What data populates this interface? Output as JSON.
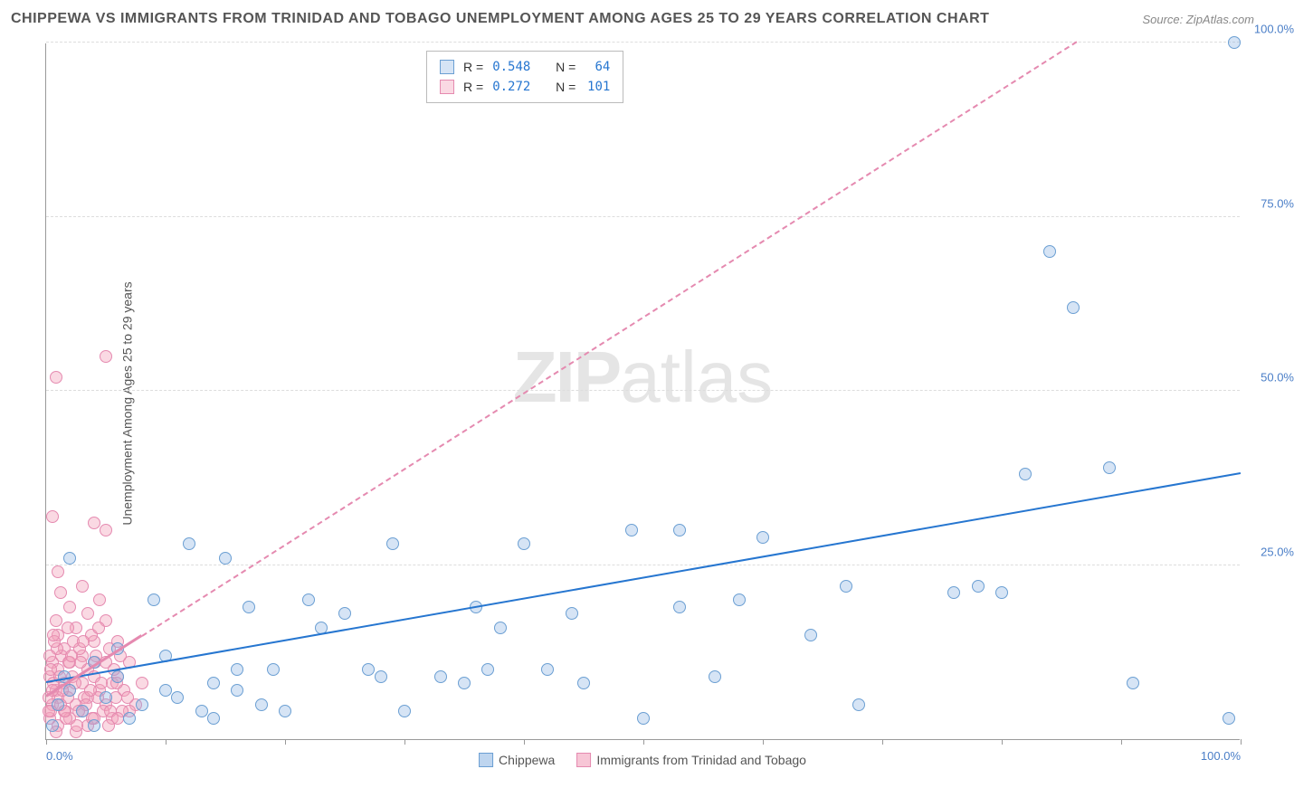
{
  "title": "CHIPPEWA VS IMMIGRANTS FROM TRINIDAD AND TOBAGO UNEMPLOYMENT AMONG AGES 25 TO 29 YEARS CORRELATION CHART",
  "source": "Source: ZipAtlas.com",
  "ylabel": "Unemployment Among Ages 25 to 29 years",
  "watermark_bold": "ZIP",
  "watermark_rest": "atlas",
  "chart": {
    "type": "scatter",
    "xlim": [
      0,
      100
    ],
    "ylim": [
      0,
      100
    ],
    "y_ticks": [
      25,
      50,
      75,
      100
    ],
    "y_tick_labels": [
      "25.0%",
      "50.0%",
      "75.0%",
      "100.0%"
    ],
    "x_minor_tick_step": 10,
    "x_tick_labels": {
      "0": "0.0%",
      "100": "100.0%"
    },
    "grid_color": "#dddddd",
    "axis_color": "#999999",
    "background_color": "#ffffff",
    "y_tick_label_color": "#4a7ec7",
    "x_tick_label_color": "#4a7ec7"
  },
  "series": [
    {
      "name": "Chippewa",
      "marker_fill": "rgba(137,178,225,0.35)",
      "marker_stroke": "#6b9fd3",
      "marker_size": 14,
      "line_color": "#2676d0",
      "line_dash": false,
      "regression": {
        "y_at_x0": 8,
        "y_at_x100": 38
      },
      "R": "0.548",
      "N": "64",
      "points": [
        [
          99.5,
          100
        ],
        [
          84,
          70
        ],
        [
          86,
          62
        ],
        [
          99,
          3
        ],
        [
          91,
          8
        ],
        [
          89,
          39
        ],
        [
          80,
          21
        ],
        [
          82,
          38
        ],
        [
          78,
          22
        ],
        [
          76,
          21
        ],
        [
          68,
          5
        ],
        [
          67,
          22
        ],
        [
          64,
          15
        ],
        [
          60,
          29
        ],
        [
          58,
          20
        ],
        [
          56,
          9
        ],
        [
          53,
          30
        ],
        [
          53,
          19
        ],
        [
          50,
          3
        ],
        [
          49,
          30
        ],
        [
          45,
          8
        ],
        [
          44,
          18
        ],
        [
          42,
          10
        ],
        [
          40,
          28
        ],
        [
          38,
          16
        ],
        [
          37,
          10
        ],
        [
          36,
          19
        ],
        [
          35,
          8
        ],
        [
          33,
          9
        ],
        [
          30,
          4
        ],
        [
          29,
          28
        ],
        [
          28,
          9
        ],
        [
          27,
          10
        ],
        [
          25,
          18
        ],
        [
          23,
          16
        ],
        [
          22,
          20
        ],
        [
          20,
          4
        ],
        [
          19,
          10
        ],
        [
          18,
          5
        ],
        [
          17,
          19
        ],
        [
          16,
          10
        ],
        [
          15,
          26
        ],
        [
          14,
          8
        ],
        [
          13,
          4
        ],
        [
          12,
          28
        ],
        [
          11,
          6
        ],
        [
          10,
          7
        ],
        [
          9,
          20
        ],
        [
          8,
          5
        ],
        [
          7,
          3
        ],
        [
          6,
          9
        ],
        [
          5,
          6
        ],
        [
          4,
          11
        ],
        [
          3,
          4
        ],
        [
          2,
          7
        ],
        [
          2,
          26
        ],
        [
          1,
          5
        ],
        [
          1.5,
          9
        ],
        [
          0.5,
          2
        ],
        [
          4,
          2
        ],
        [
          6,
          13
        ],
        [
          10,
          12
        ],
        [
          14,
          3
        ],
        [
          16,
          7
        ]
      ]
    },
    {
      "name": "Immigrants from Trinidad and Tobago",
      "marker_fill": "rgba(242,160,186,0.4)",
      "marker_stroke": "#e58ab0",
      "marker_size": 14,
      "line_color": "#e58ab0",
      "line_dash": true,
      "regression": {
        "y_at_x0": 6,
        "y_at_x100": 115
      },
      "dash_extend": {
        "x1": 8,
        "y1": 14,
        "x2": 95,
        "y2": 109
      },
      "R": "0.272",
      "N": "101",
      "points": [
        [
          5,
          55
        ],
        [
          0.8,
          52
        ],
        [
          0.5,
          32
        ],
        [
          4,
          31
        ],
        [
          5,
          30
        ],
        [
          1,
          24
        ],
        [
          3,
          22
        ],
        [
          1.2,
          21
        ],
        [
          4.5,
          20
        ],
        [
          2,
          19
        ],
        [
          3.5,
          18
        ],
        [
          0.8,
          17
        ],
        [
          2.5,
          16
        ],
        [
          1,
          15
        ],
        [
          4,
          14
        ],
        [
          1.5,
          13
        ],
        [
          3,
          12
        ],
        [
          0.5,
          11
        ],
        [
          2,
          11
        ],
        [
          5,
          11
        ],
        [
          1,
          10
        ],
        [
          3.5,
          10
        ],
        [
          0.3,
          9
        ],
        [
          2.2,
          9
        ],
        [
          4,
          9
        ],
        [
          1.5,
          8
        ],
        [
          3,
          8
        ],
        [
          5.5,
          8
        ],
        [
          0.8,
          7
        ],
        [
          2,
          7
        ],
        [
          4.5,
          7
        ],
        [
          1,
          6
        ],
        [
          3.5,
          6
        ],
        [
          0.5,
          5
        ],
        [
          2.5,
          5
        ],
        [
          5,
          5
        ],
        [
          1.5,
          4
        ],
        [
          3,
          4
        ],
        [
          0.3,
          3
        ],
        [
          2,
          3
        ],
        [
          4,
          3
        ],
        [
          1,
          2
        ],
        [
          3.5,
          2
        ],
        [
          5.5,
          3
        ],
        [
          0.8,
          1
        ],
        [
          2.5,
          1
        ],
        [
          6,
          9
        ],
        [
          6.5,
          7
        ],
        [
          7,
          11
        ],
        [
          7.5,
          5
        ],
        [
          8,
          8
        ],
        [
          6,
          14
        ],
        [
          7,
          4
        ],
        [
          0.2,
          6
        ],
        [
          1.8,
          6
        ],
        [
          3.2,
          6
        ],
        [
          0.4,
          4
        ],
        [
          2.8,
          13
        ],
        [
          4.2,
          12
        ],
        [
          5.8,
          6
        ],
        [
          1.3,
          12
        ],
        [
          3.8,
          15
        ],
        [
          0.6,
          8
        ],
        [
          2.3,
          14
        ],
        [
          4.8,
          4
        ],
        [
          6.2,
          12
        ],
        [
          0.9,
          13
        ],
        [
          3.3,
          5
        ],
        [
          5.3,
          13
        ],
        [
          1.7,
          3
        ],
        [
          4.3,
          6
        ],
        [
          0.4,
          10
        ],
        [
          2.7,
          4
        ],
        [
          5,
          17
        ],
        [
          1.4,
          7
        ],
        [
          3.9,
          3
        ],
        [
          6.4,
          4
        ],
        [
          0.7,
          14
        ],
        [
          2.9,
          11
        ],
        [
          5.2,
          2
        ],
        [
          1.6,
          4
        ],
        [
          4.4,
          16
        ],
        [
          0.3,
          12
        ],
        [
          2.4,
          8
        ],
        [
          5.7,
          10
        ],
        [
          1.1,
          9
        ],
        [
          3.7,
          7
        ],
        [
          6.8,
          6
        ],
        [
          0.6,
          15
        ],
        [
          2.6,
          2
        ],
        [
          5.4,
          4
        ],
        [
          1.9,
          11
        ],
        [
          4.6,
          8
        ],
        [
          0.2,
          4
        ],
        [
          3.1,
          14
        ],
        [
          6,
          3
        ],
        [
          1.2,
          5
        ],
        [
          4.1,
          11
        ],
        [
          0.5,
          7
        ],
        [
          2.1,
          12
        ],
        [
          5.9,
          8
        ],
        [
          1.8,
          16
        ]
      ]
    }
  ],
  "legend_top": {
    "r_label": "R =",
    "n_label": "N ="
  },
  "legend_bottom": [
    {
      "label": "Chippewa",
      "fill": "rgba(137,178,225,0.55)",
      "stroke": "#6b9fd3"
    },
    {
      "label": "Immigrants from Trinidad and Tobago",
      "fill": "rgba(242,160,186,0.6)",
      "stroke": "#e58ab0"
    }
  ]
}
